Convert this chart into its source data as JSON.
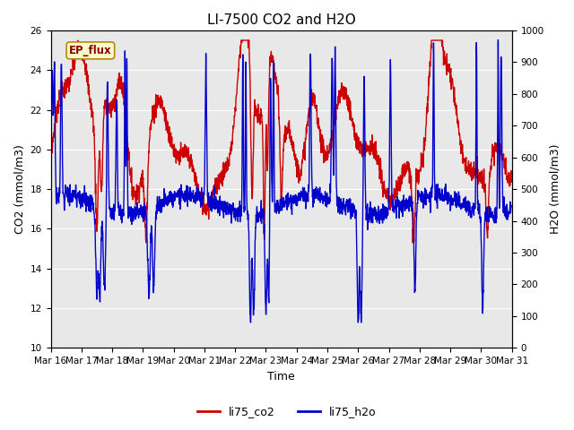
{
  "title": "LI-7500 CO2 and H2O",
  "xlabel": "Time",
  "ylabel_left": "CO2 (mmol/m3)",
  "ylabel_right": "H2O (mmol/m3)",
  "ylim_left": [
    10,
    26
  ],
  "ylim_right": [
    0,
    1000
  ],
  "yticks_left": [
    10,
    12,
    14,
    16,
    18,
    20,
    22,
    24,
    26
  ],
  "yticks_right": [
    0,
    100,
    200,
    300,
    400,
    500,
    600,
    700,
    800,
    900,
    1000
  ],
  "x_labels": [
    "Mar 16",
    "Mar 17",
    "Mar 18",
    "Mar 19",
    "Mar 20",
    "Mar 21",
    "Mar 22",
    "Mar 23",
    "Mar 24",
    "Mar 25",
    "Mar 26",
    "Mar 27",
    "Mar 28",
    "Mar 29",
    "Mar 30",
    "Mar 31"
  ],
  "color_co2": "#cc0000",
  "color_h2o": "#0000cc",
  "legend_label_co2": "li75_co2",
  "legend_label_h2o": "li75_h2o",
  "annotation_text": "EP_flux",
  "plot_bg_color": "#e8e8e8",
  "fig_bg_color": "#ffffff",
  "title_fontsize": 11,
  "axis_fontsize": 9,
  "tick_fontsize": 7.5,
  "legend_fontsize": 9,
  "linewidth_co2": 1.0,
  "linewidth_h2o": 1.0,
  "n_points": 2000,
  "seed": 7
}
